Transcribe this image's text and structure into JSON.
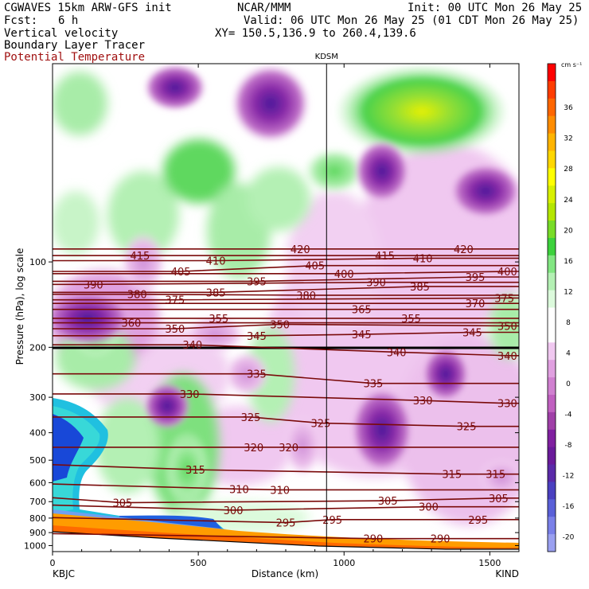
{
  "header": {
    "model": "CGWAVES 15km ARW-GFS init",
    "org": "NCAR/MMM",
    "init": "Init: 00 UTC Mon 26 May 25",
    "fcst_label": "Fcst:",
    "fcst_value": "6 h",
    "valid": "Valid: 06 UTC Mon 26 May 25 (01 CDT Mon 26 May 25)",
    "field1": "Vertical velocity",
    "field2": "Boundary Layer Tracer",
    "field3": "Potential Temperature",
    "xy": "XY= 150.5,136.9 to 260.4,139.6"
  },
  "colors": {
    "theta_contour": "#7a0a0a",
    "title_red": "#a01010"
  },
  "chart_data": {
    "type": "heatmap",
    "xlabel": "Distance (km)",
    "ylabel": "Pressure (hPa), log scale",
    "x_ticks": [
      0,
      500,
      1000,
      1500
    ],
    "xlim": [
      0,
      1600
    ],
    "y_ticks": [
      100,
      200,
      300,
      400,
      500,
      600,
      700,
      800,
      900,
      1000
    ],
    "ylim": [
      1050,
      20
    ],
    "y_scale": "log",
    "left_station": "KBJC",
    "right_station": "KIND",
    "marker_station": "KDSM",
    "marker_x_km": 940,
    "colorbar": {
      "unit": "cm s⁻¹",
      "tick_labels": [
        36,
        32,
        28,
        24,
        20,
        16,
        12,
        8,
        4,
        0,
        -4,
        -8,
        -12,
        -16,
        -20
      ],
      "colors": [
        "#ff0000",
        "#ff3c00",
        "#ff6600",
        "#ff8c00",
        "#ffb400",
        "#ffd700",
        "#ffff00",
        "#d8f000",
        "#b4e600",
        "#78dc28",
        "#3cd23c",
        "#82e682",
        "#b4f0b4",
        "#dcfadc",
        "#ffffff",
        "#ffffff",
        "#f0c8f0",
        "#e0a0e0",
        "#d080d0",
        "#c060c0",
        "#a040a8",
        "#8020a0",
        "#6a1a9a",
        "#5a2aa8",
        "#4a40c0",
        "#5a60d8",
        "#7a80e8",
        "#9aa0f0"
      ]
    },
    "theta_labels": [
      {
        "value": 420,
        "x": 850,
        "p": 90
      },
      {
        "value": 420,
        "x": 1410,
        "p": 90
      },
      {
        "value": 415,
        "x": 300,
        "p": 95
      },
      {
        "value": 415,
        "x": 1140,
        "p": 95
      },
      {
        "value": 410,
        "x": 560,
        "p": 99
      },
      {
        "value": 410,
        "x": 1270,
        "p": 97
      },
      {
        "value": 405,
        "x": 440,
        "p": 108
      },
      {
        "value": 405,
        "x": 900,
        "p": 103
      },
      {
        "value": 400,
        "x": 1000,
        "p": 110
      },
      {
        "value": 400,
        "x": 1560,
        "p": 108
      },
      {
        "value": 395,
        "x": 700,
        "p": 117
      },
      {
        "value": 395,
        "x": 1450,
        "p": 113
      },
      {
        "value": 390,
        "x": 140,
        "p": 120
      },
      {
        "value": 390,
        "x": 1110,
        "p": 118
      },
      {
        "value": 385,
        "x": 560,
        "p": 128
      },
      {
        "value": 385,
        "x": 1260,
        "p": 122
      },
      {
        "value": 380,
        "x": 290,
        "p": 130
      },
      {
        "value": 380,
        "x": 870,
        "p": 131
      },
      {
        "value": 375,
        "x": 420,
        "p": 136
      },
      {
        "value": 375,
        "x": 1550,
        "p": 134
      },
      {
        "value": 370,
        "x": 1450,
        "p": 140
      },
      {
        "value": 365,
        "x": 1060,
        "p": 147
      },
      {
        "value": 360,
        "x": 270,
        "p": 164
      },
      {
        "value": 355,
        "x": 570,
        "p": 158
      },
      {
        "value": 355,
        "x": 1230,
        "p": 158
      },
      {
        "value": 350,
        "x": 420,
        "p": 172
      },
      {
        "value": 350,
        "x": 780,
        "p": 166
      },
      {
        "value": 350,
        "x": 1560,
        "p": 168
      },
      {
        "value": 345,
        "x": 700,
        "p": 182
      },
      {
        "value": 345,
        "x": 1060,
        "p": 180
      },
      {
        "value": 345,
        "x": 1440,
        "p": 177
      },
      {
        "value": 340,
        "x": 480,
        "p": 196
      },
      {
        "value": 340,
        "x": 1180,
        "p": 208
      },
      {
        "value": 340,
        "x": 1560,
        "p": 214
      },
      {
        "value": 335,
        "x": 700,
        "p": 248
      },
      {
        "value": 335,
        "x": 1100,
        "p": 268
      },
      {
        "value": 330,
        "x": 470,
        "p": 292
      },
      {
        "value": 330,
        "x": 1270,
        "p": 308
      },
      {
        "value": 330,
        "x": 1560,
        "p": 315
      },
      {
        "value": 325,
        "x": 680,
        "p": 352
      },
      {
        "value": 325,
        "x": 920,
        "p": 370
      },
      {
        "value": 325,
        "x": 1420,
        "p": 380
      },
      {
        "value": 320,
        "x": 690,
        "p": 450
      },
      {
        "value": 320,
        "x": 810,
        "p": 450
      },
      {
        "value": 315,
        "x": 490,
        "p": 540
      },
      {
        "value": 315,
        "x": 1370,
        "p": 560
      },
      {
        "value": 315,
        "x": 1520,
        "p": 560
      },
      {
        "value": 310,
        "x": 640,
        "p": 632
      },
      {
        "value": 310,
        "x": 780,
        "p": 636
      },
      {
        "value": 305,
        "x": 240,
        "p": 706
      },
      {
        "value": 305,
        "x": 1150,
        "p": 695
      },
      {
        "value": 305,
        "x": 1530,
        "p": 680
      },
      {
        "value": 300,
        "x": 620,
        "p": 750
      },
      {
        "value": 300,
        "x": 1290,
        "p": 730
      },
      {
        "value": 295,
        "x": 800,
        "p": 830
      },
      {
        "value": 295,
        "x": 960,
        "p": 810
      },
      {
        "value": 295,
        "x": 1460,
        "p": 810
      },
      {
        "value": 290,
        "x": 1100,
        "p": 945
      },
      {
        "value": 290,
        "x": 1330,
        "p": 945
      }
    ]
  }
}
